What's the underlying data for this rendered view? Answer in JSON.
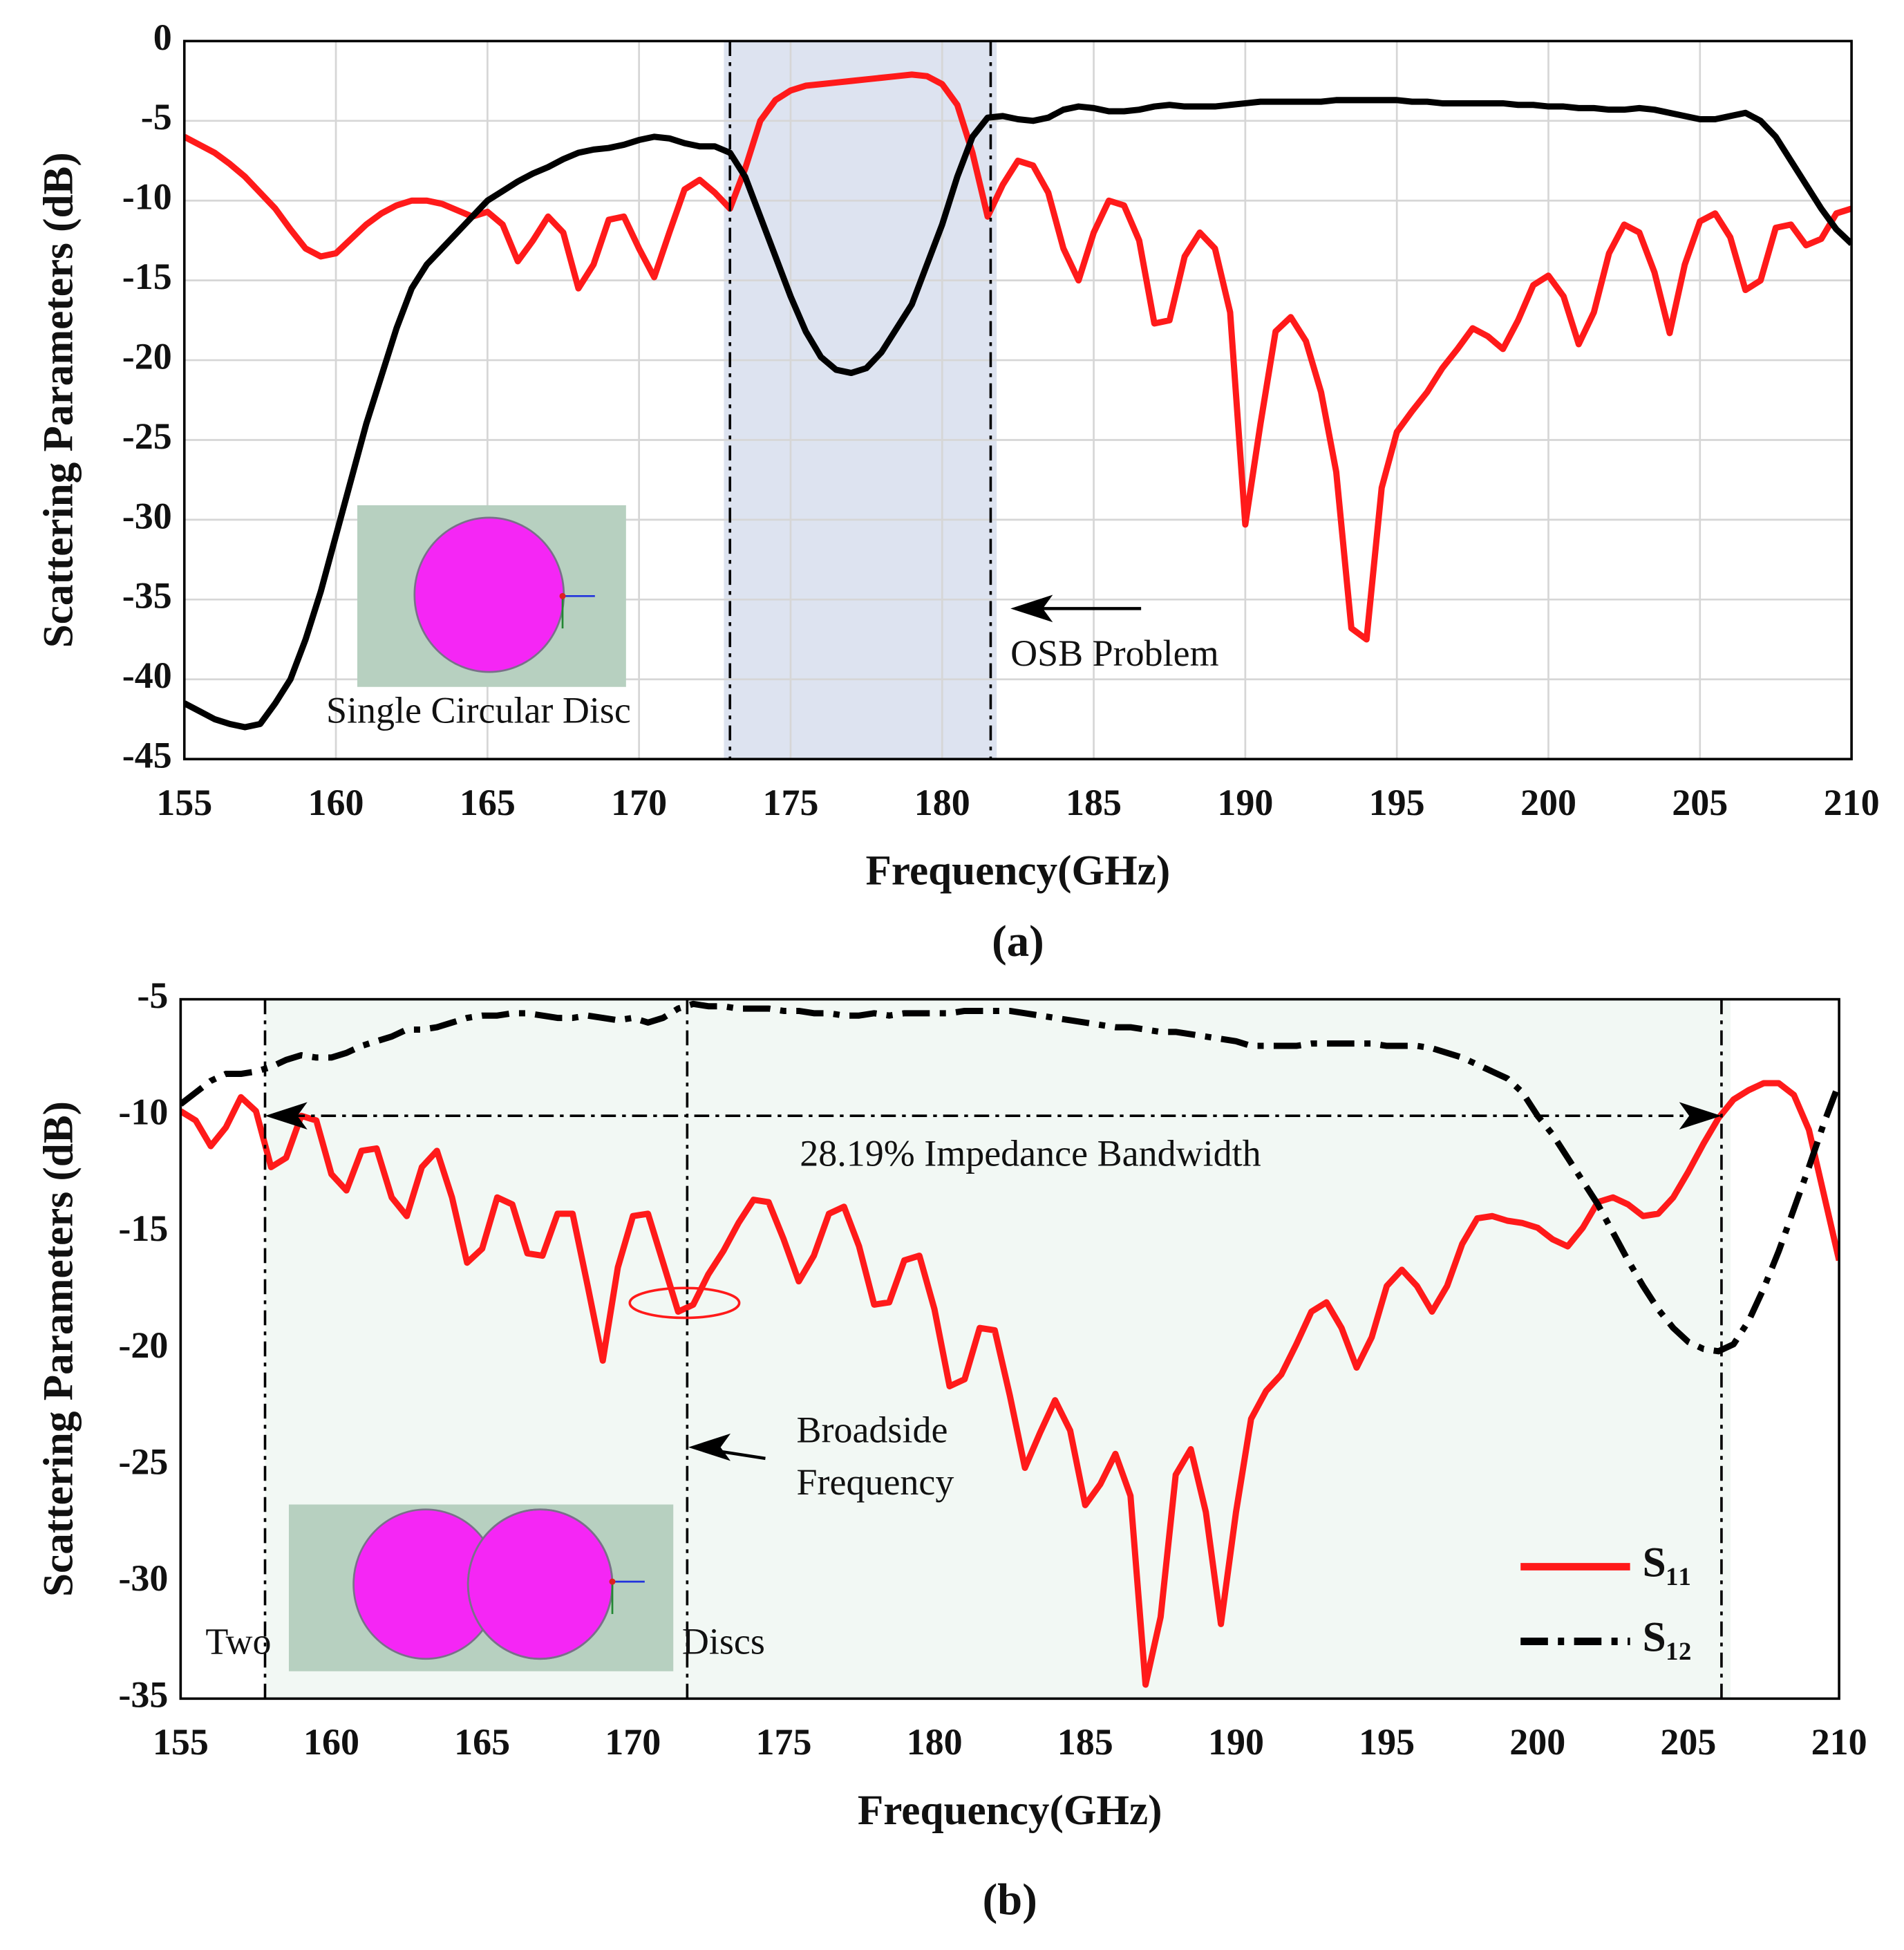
{
  "chart_data": [
    {
      "type": "line",
      "xlabel": "Frequency(GHz)",
      "ylabel": "Scattering Parameters (dB)",
      "caption": "(a)",
      "xlim": [
        155,
        210
      ],
      "xticks": [
        155,
        160,
        165,
        170,
        175,
        180,
        185,
        190,
        195,
        200,
        205,
        210
      ],
      "ylim": [
        -45,
        0
      ],
      "yticks": [
        -45,
        -40,
        -35,
        -30,
        -25,
        -20,
        -15,
        -10,
        -5,
        0
      ],
      "grid": true,
      "region": [
        172.8,
        181.8
      ],
      "region_color": "#dde3f0",
      "vlines": [
        173.0,
        181.6
      ],
      "annotations": [
        "OSB Problem",
        "Single Circular Disc"
      ],
      "x": [
        155,
        155.5,
        156,
        156.5,
        157,
        157.5,
        158,
        158.5,
        159,
        159.5,
        160,
        160.5,
        161,
        161.5,
        162,
        162.5,
        163,
        163.5,
        164,
        164.5,
        165,
        165.5,
        166,
        166.5,
        167,
        167.5,
        168,
        168.5,
        169,
        169.5,
        170,
        170.5,
        171,
        171.5,
        172,
        172.5,
        173,
        173.5,
        174,
        174.5,
        175,
        175.5,
        176,
        176.5,
        177,
        177.5,
        178,
        178.5,
        179,
        179.5,
        180,
        180.5,
        181,
        181.5,
        182,
        182.5,
        183,
        183.5,
        184,
        184.5,
        185,
        185.5,
        186,
        186.5,
        187,
        187.5,
        188,
        188.5,
        189,
        189.5,
        190,
        190.5,
        191,
        191.5,
        192,
        192.5,
        193,
        193.5,
        194,
        194.5,
        195,
        195.5,
        196,
        196.5,
        197,
        197.5,
        198,
        198.5,
        199,
        199.5,
        200,
        200.5,
        201,
        201.5,
        202,
        202.5,
        203,
        203.5,
        204,
        204.5,
        205,
        205.5,
        206,
        206.5,
        207,
        207.5,
        208,
        208.5,
        209,
        209.5,
        210
      ],
      "series": [
        {
          "color": "#ff1a1a",
          "dash": "solid",
          "values": [
            -6,
            -6.5,
            -7,
            -7.7,
            -8.5,
            -9.5,
            -10.5,
            -11.8,
            -13,
            -13.5,
            -13.3,
            -12.4,
            -11.5,
            -10.8,
            -10.3,
            -10,
            -10,
            -10.2,
            -10.6,
            -11,
            -10.7,
            -11.5,
            -13.8,
            -12.5,
            -11,
            -12,
            -15.5,
            -14,
            -11.2,
            -11,
            -13,
            -14.8,
            -12,
            -9.3,
            -8.7,
            -9.5,
            -10.5,
            -8,
            -5,
            -3.7,
            -3.1,
            -2.8,
            -2.7,
            -2.6,
            -2.5,
            -2.4,
            -2.3,
            -2.2,
            -2.1,
            -2.2,
            -2.7,
            -4,
            -7,
            -11,
            -9,
            -7.5,
            -7.8,
            -9.5,
            -13,
            -15,
            -12,
            -10,
            -10.3,
            -12.5,
            -17.7,
            -17.5,
            -13.5,
            -12,
            -13,
            -17,
            -30.3,
            -24,
            -18.2,
            -17.3,
            -18.8,
            -22,
            -27,
            -36.8,
            -37.5,
            -28,
            -24.5,
            -23.2,
            -22,
            -20.5,
            -19.3,
            -18,
            -18.5,
            -19.3,
            -17.5,
            -15.3,
            -14.7,
            -16,
            -19,
            -17,
            -13.3,
            -11.5,
            -12,
            -14.5,
            -18.3,
            -14,
            -11.3,
            -10.8,
            -12.3,
            -15.6,
            -15,
            -11.7,
            -11.5,
            -12.8,
            -12.4,
            -10.8,
            -10.5
          ]
        },
        {
          "color": "#000000",
          "dash": "solid",
          "values": [
            -41.5,
            -42,
            -42.5,
            -42.8,
            -43,
            -42.8,
            -41.5,
            -40,
            -37.5,
            -34.5,
            -31,
            -27.5,
            -24,
            -21,
            -18,
            -15.5,
            -14,
            -13,
            -12,
            -11,
            -10,
            -9.4,
            -8.8,
            -8.3,
            -7.9,
            -7.4,
            -7,
            -6.8,
            -6.7,
            -6.5,
            -6.2,
            -6,
            -6.1,
            -6.4,
            -6.6,
            -6.6,
            -7,
            -8.5,
            -11,
            -13.5,
            -16,
            -18.2,
            -19.8,
            -20.6,
            -20.8,
            -20.5,
            -19.5,
            -18,
            -16.5,
            -14,
            -11.5,
            -8.5,
            -6,
            -4.8,
            -4.7,
            -4.9,
            -5,
            -4.8,
            -4.3,
            -4.1,
            -4.2,
            -4.4,
            -4.4,
            -4.3,
            -4.1,
            -4,
            -4.1,
            -4.1,
            -4.1,
            -4,
            -3.9,
            -3.8,
            -3.8,
            -3.8,
            -3.8,
            -3.8,
            -3.7,
            -3.7,
            -3.7,
            -3.7,
            -3.7,
            -3.8,
            -3.8,
            -3.9,
            -3.9,
            -3.9,
            -3.9,
            -3.9,
            -4,
            -4,
            -4.1,
            -4.1,
            -4.2,
            -4.2,
            -4.3,
            -4.3,
            -4.2,
            -4.3,
            -4.5,
            -4.7,
            -4.9,
            -4.9,
            -4.7,
            -4.5,
            -5,
            -6,
            -7.5,
            -9,
            -10.5,
            -11.8,
            -12.7
          ]
        }
      ]
    },
    {
      "type": "line",
      "xlabel": "Frequency(GHz)",
      "ylabel": "Scattering Parameters (dB)",
      "caption": "(b)",
      "xlim": [
        155,
        210
      ],
      "xticks": [
        155,
        160,
        165,
        170,
        175,
        180,
        185,
        190,
        195,
        200,
        205,
        210
      ],
      "ylim": [
        -35,
        -5
      ],
      "yticks": [
        -35,
        -30,
        -25,
        -20,
        -15,
        -10,
        -5
      ],
      "grid": false,
      "legend": "lower right",
      "region": [
        157.8,
        206.4
      ],
      "region_color": "#f2f8f4",
      "vlines": [
        157.8,
        171.8,
        206.1
      ],
      "hline": -10,
      "annotations": [
        "28.19% Impedance Bandwidth",
        "Broadside",
        "Frequency",
        "Two",
        "Discs"
      ],
      "x": [
        155,
        155.5,
        156,
        156.5,
        157,
        157.5,
        158,
        158.5,
        159,
        159.5,
        160,
        160.5,
        161,
        161.5,
        162,
        162.5,
        163,
        163.5,
        164,
        164.5,
        165,
        165.5,
        166,
        166.5,
        167,
        167.5,
        168,
        168.5,
        169,
        169.5,
        170,
        170.5,
        171,
        171.5,
        172,
        172.5,
        173,
        173.5,
        174,
        174.5,
        175,
        175.5,
        176,
        176.5,
        177,
        177.5,
        178,
        178.5,
        179,
        179.5,
        180,
        180.5,
        181,
        181.5,
        182,
        182.5,
        183,
        183.5,
        184,
        184.5,
        185,
        185.5,
        186,
        186.5,
        187,
        187.5,
        188,
        188.5,
        189,
        189.5,
        190,
        190.5,
        191,
        191.5,
        192,
        192.5,
        193,
        193.5,
        194,
        194.5,
        195,
        195.5,
        196,
        196.5,
        197,
        197.5,
        198,
        198.5,
        199,
        199.5,
        200,
        200.5,
        201,
        201.5,
        202,
        202.5,
        203,
        203.5,
        204,
        204.5,
        205,
        205.5,
        206,
        206.5,
        207,
        207.5,
        208,
        208.5,
        209,
        209.5,
        210
      ],
      "series": [
        {
          "name": "S₁₁",
          "color": "#ff1a1a",
          "dash": "solid",
          "values": [
            -9.8,
            -10.2,
            -11.3,
            -10.5,
            -9.2,
            -9.8,
            -12.2,
            -11.8,
            -10,
            -10.2,
            -12.5,
            -13.2,
            -11.5,
            -11.4,
            -13.5,
            -14.3,
            -12.2,
            -11.5,
            -13.5,
            -16.3,
            -15.7,
            -13.5,
            -13.8,
            -15.9,
            -16,
            -14.2,
            -14.2,
            -17.3,
            -20.5,
            -16.5,
            -14.3,
            -14.2,
            -16.3,
            -18.4,
            -18.1,
            -16.8,
            -15.8,
            -14.6,
            -13.6,
            -13.7,
            -15.3,
            -17.1,
            -16,
            -14.2,
            -13.9,
            -15.6,
            -18.1,
            -18,
            -16.2,
            -16,
            -18.3,
            -21.6,
            -21.3,
            -19.1,
            -19.2,
            -22,
            -25.1,
            -23.6,
            -22.2,
            -23.5,
            -26.7,
            -25.8,
            -24.5,
            -26.3,
            -34.4,
            -31.5,
            -25.4,
            -24.3,
            -27,
            -31.8,
            -27,
            -23,
            -21.8,
            -21.1,
            -19.8,
            -18.4,
            -18,
            -19.1,
            -20.8,
            -19.5,
            -17.3,
            -16.6,
            -17.3,
            -18.4,
            -17.3,
            -15.5,
            -14.4,
            -14.3,
            -14.5,
            -14.6,
            -14.8,
            -15.3,
            -15.6,
            -14.8,
            -13.7,
            -13.5,
            -13.8,
            -14.3,
            -14.2,
            -13.5,
            -12.4,
            -11.2,
            -10.1,
            -9.3,
            -8.9,
            -8.6,
            -8.6,
            -9.1,
            -10.6,
            -13.4,
            -16.2
          ]
        },
        {
          "name": "S₁₂",
          "color": "#000000",
          "dash": "dashdot",
          "values": [
            -9.5,
            -9,
            -8.5,
            -8.2,
            -8.2,
            -8.1,
            -7.9,
            -7.6,
            -7.4,
            -7.5,
            -7.5,
            -7.3,
            -7,
            -6.8,
            -6.6,
            -6.3,
            -6.3,
            -6.2,
            -6,
            -5.8,
            -5.7,
            -5.7,
            -5.6,
            -5.6,
            -5.7,
            -5.8,
            -5.8,
            -5.7,
            -5.8,
            -5.9,
            -5.8,
            -6,
            -5.8,
            -5.4,
            -5.2,
            -5.3,
            -5.3,
            -5.4,
            -5.4,
            -5.4,
            -5.5,
            -5.5,
            -5.6,
            -5.6,
            -5.7,
            -5.7,
            -5.6,
            -5.7,
            -5.6,
            -5.6,
            -5.6,
            -5.6,
            -5.5,
            -5.5,
            -5.5,
            -5.5,
            -5.6,
            -5.7,
            -5.8,
            -5.9,
            -6,
            -6.1,
            -6.2,
            -6.2,
            -6.3,
            -6.4,
            -6.4,
            -6.5,
            -6.6,
            -6.7,
            -6.8,
            -7,
            -7,
            -7,
            -7,
            -6.9,
            -6.9,
            -6.9,
            -6.9,
            -6.9,
            -7,
            -7,
            -7,
            -7.1,
            -7.3,
            -7.5,
            -7.8,
            -8.1,
            -8.4,
            -9,
            -10,
            -10.8,
            -11.8,
            -12.8,
            -13.8,
            -15,
            -16.2,
            -17.3,
            -18.3,
            -19.1,
            -19.7,
            -20,
            -20.1,
            -19.8,
            -18.8,
            -17.4,
            -15.8,
            -14,
            -12.2,
            -10.3,
            -8.6
          ]
        }
      ]
    }
  ]
}
